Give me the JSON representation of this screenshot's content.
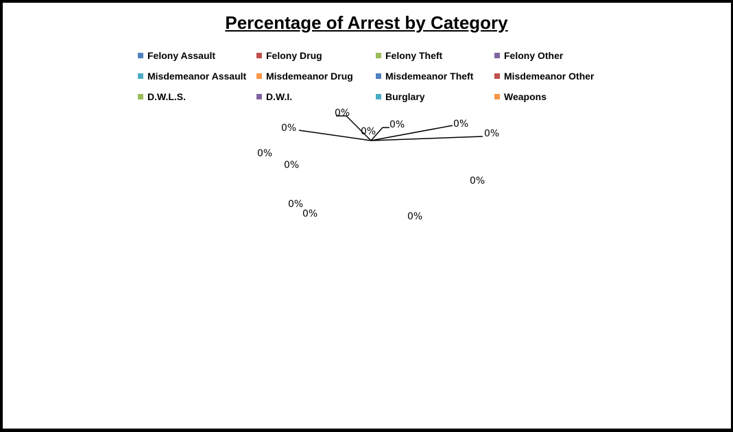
{
  "chart_data": {
    "type": "pie",
    "title": "Percentage of Arrest by Category",
    "categories": [
      "Felony Assault",
      "Felony Drug",
      "Felony Theft",
      "Felony Other",
      "Misdemeanor Assault",
      "Misdemeanor Drug",
      "Misdemeanor Theft",
      "Misdemeanor Other",
      "D.W.L.S.",
      "D.W.I.",
      "Burglary",
      "Weapons"
    ],
    "colors": [
      "#4F81BD",
      "#C0504D",
      "#9BBB59",
      "#8064A2",
      "#4BACC6",
      "#F79646",
      "#4F81BD",
      "#C0504D",
      "#9BBB59",
      "#8064A2",
      "#4BACC6",
      "#F79646"
    ],
    "values": [
      0,
      0,
      0,
      0,
      0,
      0,
      0,
      0,
      0,
      0,
      0,
      0
    ],
    "data_labels": [
      "0%",
      "0%",
      "0%",
      "0%",
      "0%",
      "0%",
      "0%",
      "0%",
      "0%",
      "0%",
      "0%",
      "0%"
    ],
    "legend_position": "top",
    "grid": false
  }
}
